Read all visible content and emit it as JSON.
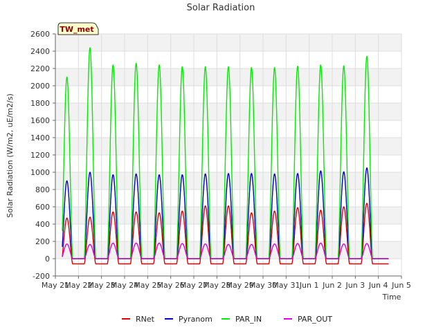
{
  "chart_data": {
    "type": "line",
    "title": "Solar Radiation",
    "xlabel": "Time",
    "ylabel": "Solar Radiation (W/m2, uE/m2/s)",
    "station_label": "TW_met",
    "ylim": [
      -200,
      2600
    ],
    "yticks": [
      -200,
      0,
      200,
      400,
      600,
      800,
      1000,
      1200,
      1400,
      1600,
      1800,
      2000,
      2200,
      2400,
      2600
    ],
    "xlim": [
      0,
      15
    ],
    "xticks": [
      0,
      1,
      2,
      3,
      4,
      5,
      6,
      7,
      8,
      9,
      10,
      11,
      12,
      13,
      14,
      15
    ],
    "xtick_labels": [
      "May 21",
      "May 22",
      "May 23",
      "May 24",
      "May 25",
      "May 26",
      "May 27",
      "May 28",
      "May 29",
      "May 30",
      "May 31",
      "Jun 1",
      "Jun 2",
      "Jun 3",
      "Jun 4",
      "Jun 5"
    ],
    "grid": true,
    "legend_position": "bottom",
    "series": [
      {
        "name": "RNet",
        "color": "#dd0000",
        "night": -60,
        "daily_peaks": [
          470,
          480,
          540,
          540,
          530,
          550,
          610,
          610,
          530,
          550,
          590,
          560,
          600,
          640
        ]
      },
      {
        "name": "Pyranom",
        "color": "#0000cc",
        "night": 0,
        "daily_peaks": [
          900,
          1000,
          970,
          980,
          970,
          970,
          980,
          985,
          985,
          980,
          985,
          1015,
          1005,
          1050
        ]
      },
      {
        "name": "PAR_IN",
        "color": "#00ee00",
        "night": 0,
        "daily_peaks": [
          2100,
          2440,
          2240,
          2260,
          2240,
          2220,
          2220,
          2220,
          2210,
          2210,
          2225,
          2240,
          2230,
          2340
        ]
      },
      {
        "name": "PAR_OUT",
        "color": "#dd00dd",
        "night": 0,
        "daily_peaks": [
          170,
          165,
          180,
          180,
          180,
          175,
          170,
          165,
          165,
          170,
          175,
          180,
          170,
          175
        ]
      }
    ],
    "day_start_offset": 0.25,
    "day_length": 0.5,
    "data_end": 14.45
  }
}
